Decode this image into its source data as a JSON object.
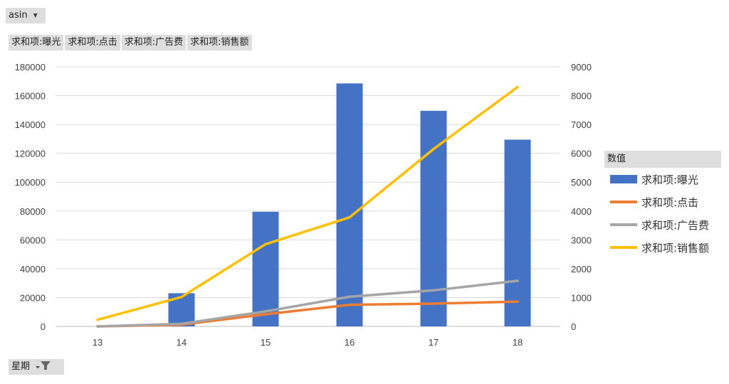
{
  "pivot": {
    "filter_field": "asin",
    "value_fields": [
      "求和项:曝光",
      "求和项:点击",
      "求和项:广告费",
      "求和项:销售额"
    ],
    "axis_field": "星期",
    "legend_title": "数值"
  },
  "colors": {
    "bar": "#4472C4",
    "clicks": "#ED7D31",
    "ad_cost": "#A5A5A5",
    "sales": "#FFC000"
  },
  "chart_data": {
    "type": "bar",
    "categories": [
      "13",
      "14",
      "15",
      "16",
      "17",
      "18"
    ],
    "y_left_lim": [
      0,
      180000
    ],
    "y_left_ticks": [
      "0",
      "20000",
      "40000",
      "60000",
      "80000",
      "100000",
      "120000",
      "140000",
      "160000",
      "180000"
    ],
    "y_right_lim": [
      0,
      9000
    ],
    "y_right_ticks": [
      "0",
      "1000",
      "2000",
      "3000",
      "4000",
      "5000",
      "6000",
      "7000",
      "8000",
      "9000"
    ],
    "grid": true,
    "legend_position": "right",
    "series": [
      {
        "name": "求和项:曝光",
        "type": "bar",
        "axis": "left",
        "values": [
          0,
          23000,
          79500,
          168500,
          149500,
          129500
        ]
      },
      {
        "name": "求和项:点击",
        "type": "line",
        "axis": "right",
        "values": [
          0,
          60,
          420,
          750,
          790,
          860
        ]
      },
      {
        "name": "求和项:广告费",
        "type": "line",
        "axis": "right",
        "values": [
          0,
          90,
          520,
          1030,
          1250,
          1580
        ]
      },
      {
        "name": "求和项:销售额",
        "type": "line",
        "axis": "right",
        "values": [
          230,
          1020,
          2850,
          3780,
          6150,
          8300
        ]
      }
    ]
  }
}
